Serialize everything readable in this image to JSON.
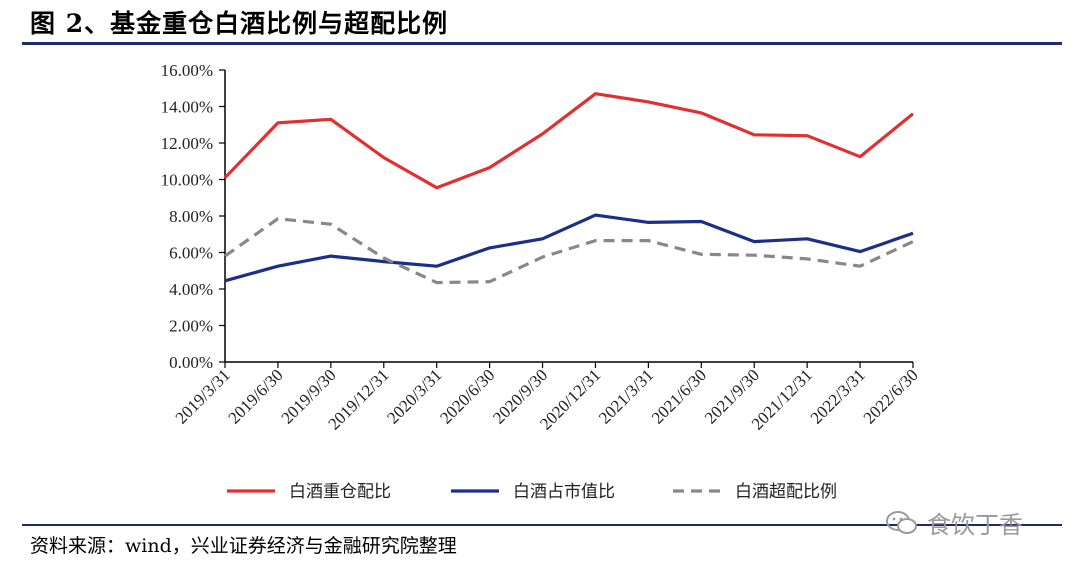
{
  "title": "图 2、基金重仓白酒比例与超配比例",
  "source": "资料来源：wind，兴业证券经济与金融研究院整理",
  "watermark": "食饮丁香",
  "chart_data": {
    "type": "line",
    "categories": [
      "2019/3/31",
      "2019/6/30",
      "2019/9/30",
      "2019/12/31",
      "2020/3/31",
      "2020/6/30",
      "2020/9/30",
      "2020/12/31",
      "2021/3/31",
      "2021/6/30",
      "2021/9/30",
      "2021/12/31",
      "2022/3/31",
      "2022/6/30"
    ],
    "yticks": [
      "0.00%",
      "2.00%",
      "4.00%",
      "6.00%",
      "8.00%",
      "10.00%",
      "12.00%",
      "14.00%",
      "16.00%"
    ],
    "ylim": [
      0,
      16
    ],
    "grid": false,
    "legend_position": "bottom",
    "series": [
      {
        "name": "白酒重仓配比",
        "color": "#e03030",
        "dash": "solid",
        "values": [
          10.1,
          13.1,
          13.3,
          11.2,
          9.55,
          10.65,
          12.5,
          14.7,
          14.25,
          13.65,
          12.45,
          12.4,
          11.25,
          13.6
        ]
      },
      {
        "name": "白酒占市值比",
        "color": "#1b2e8a",
        "dash": "solid",
        "values": [
          4.45,
          5.25,
          5.8,
          5.5,
          5.25,
          6.25,
          6.75,
          8.05,
          7.65,
          7.7,
          6.6,
          6.75,
          6.05,
          7.05
        ]
      },
      {
        "name": "白酒超配比例",
        "color": "#888888",
        "dash": "dashed",
        "values": [
          5.8,
          7.85,
          7.55,
          5.7,
          4.35,
          4.4,
          5.75,
          6.65,
          6.65,
          5.9,
          5.85,
          5.65,
          5.25,
          6.6
        ]
      }
    ]
  }
}
